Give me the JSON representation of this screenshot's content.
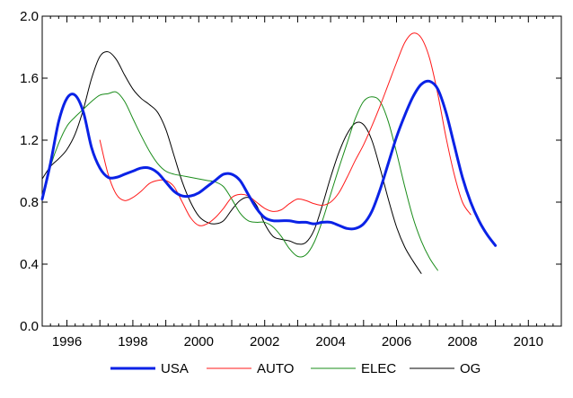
{
  "chart_data": {
    "type": "line",
    "title": "",
    "xlabel": "",
    "ylabel": "",
    "xlim": [
      1995.25,
      2011.0
    ],
    "ylim": [
      0.0,
      2.0
    ],
    "y_ticks": [
      "0.0",
      "0.4",
      "0.8",
      "1.2",
      "1.6",
      "2.0"
    ],
    "x_ticks": [
      "1996",
      "1998",
      "2000",
      "2002",
      "2004",
      "2006",
      "2008",
      "2010"
    ],
    "grid": false,
    "legend_position": "bottom",
    "series": [
      {
        "name": "USA",
        "color": "#0a22e6",
        "points": [
          [
            1995.25,
            0.82
          ],
          [
            1995.5,
            1.05
          ],
          [
            1995.75,
            1.32
          ],
          [
            1996.0,
            1.47
          ],
          [
            1996.25,
            1.49
          ],
          [
            1996.5,
            1.38
          ],
          [
            1996.75,
            1.15
          ],
          [
            1997.0,
            1.02
          ],
          [
            1997.25,
            0.96
          ],
          [
            1997.5,
            0.96
          ],
          [
            1997.75,
            0.98
          ],
          [
            1998.0,
            1.0
          ],
          [
            1998.25,
            1.02
          ],
          [
            1998.5,
            1.02
          ],
          [
            1998.75,
            0.99
          ],
          [
            1999.0,
            0.93
          ],
          [
            1999.25,
            0.87
          ],
          [
            1999.5,
            0.84
          ],
          [
            1999.75,
            0.84
          ],
          [
            2000.0,
            0.86
          ],
          [
            2000.25,
            0.9
          ],
          [
            2000.5,
            0.94
          ],
          [
            2000.75,
            0.98
          ],
          [
            2001.0,
            0.98
          ],
          [
            2001.25,
            0.94
          ],
          [
            2001.5,
            0.85
          ],
          [
            2001.75,
            0.76
          ],
          [
            2002.0,
            0.7
          ],
          [
            2002.25,
            0.68
          ],
          [
            2002.5,
            0.68
          ],
          [
            2002.75,
            0.68
          ],
          [
            2003.0,
            0.67
          ],
          [
            2003.25,
            0.67
          ],
          [
            2003.5,
            0.66
          ],
          [
            2003.75,
            0.67
          ],
          [
            2004.0,
            0.67
          ],
          [
            2004.25,
            0.65
          ],
          [
            2004.5,
            0.63
          ],
          [
            2004.75,
            0.63
          ],
          [
            2005.0,
            0.66
          ],
          [
            2005.25,
            0.74
          ],
          [
            2005.5,
            0.88
          ],
          [
            2005.75,
            1.05
          ],
          [
            2006.0,
            1.22
          ],
          [
            2006.25,
            1.36
          ],
          [
            2006.5,
            1.48
          ],
          [
            2006.75,
            1.56
          ],
          [
            2007.0,
            1.58
          ],
          [
            2007.25,
            1.53
          ],
          [
            2007.5,
            1.38
          ],
          [
            2007.75,
            1.17
          ],
          [
            2008.0,
            0.96
          ],
          [
            2008.25,
            0.8
          ],
          [
            2008.5,
            0.68
          ],
          [
            2008.75,
            0.59
          ],
          [
            2009.0,
            0.52
          ]
        ]
      },
      {
        "name": "AUTO",
        "color": "#ff1a1a",
        "points": [
          [
            1997.0,
            1.2
          ],
          [
            1997.25,
            0.98
          ],
          [
            1997.5,
            0.85
          ],
          [
            1997.75,
            0.81
          ],
          [
            1998.0,
            0.83
          ],
          [
            1998.25,
            0.87
          ],
          [
            1998.5,
            0.92
          ],
          [
            1998.75,
            0.94
          ],
          [
            1999.0,
            0.94
          ],
          [
            1999.25,
            0.9
          ],
          [
            1999.5,
            0.8
          ],
          [
            1999.75,
            0.7
          ],
          [
            2000.0,
            0.65
          ],
          [
            2000.25,
            0.66
          ],
          [
            2000.5,
            0.7
          ],
          [
            2000.75,
            0.76
          ],
          [
            2001.0,
            0.83
          ],
          [
            2001.25,
            0.85
          ],
          [
            2001.5,
            0.84
          ],
          [
            2001.75,
            0.8
          ],
          [
            2002.0,
            0.76
          ],
          [
            2002.25,
            0.74
          ],
          [
            2002.5,
            0.75
          ],
          [
            2002.75,
            0.79
          ],
          [
            2003.0,
            0.82
          ],
          [
            2003.25,
            0.81
          ],
          [
            2003.5,
            0.79
          ],
          [
            2003.75,
            0.78
          ],
          [
            2004.0,
            0.8
          ],
          [
            2004.25,
            0.86
          ],
          [
            2004.5,
            0.96
          ],
          [
            2004.75,
            1.07
          ],
          [
            2005.0,
            1.17
          ],
          [
            2005.25,
            1.29
          ],
          [
            2005.5,
            1.42
          ],
          [
            2005.75,
            1.56
          ],
          [
            2006.0,
            1.7
          ],
          [
            2006.25,
            1.83
          ],
          [
            2006.5,
            1.89
          ],
          [
            2006.75,
            1.86
          ],
          [
            2007.0,
            1.73
          ],
          [
            2007.25,
            1.5
          ],
          [
            2007.5,
            1.22
          ],
          [
            2007.75,
            0.98
          ],
          [
            2008.0,
            0.8
          ],
          [
            2008.25,
            0.72
          ]
        ]
      },
      {
        "name": "ELEC",
        "color": "#1a8c1a",
        "points": [
          [
            1995.25,
            0.83
          ],
          [
            1995.5,
            1.03
          ],
          [
            1995.75,
            1.18
          ],
          [
            1996.0,
            1.29
          ],
          [
            1996.25,
            1.35
          ],
          [
            1996.5,
            1.4
          ],
          [
            1996.75,
            1.45
          ],
          [
            1997.0,
            1.49
          ],
          [
            1997.25,
            1.5
          ],
          [
            1997.5,
            1.51
          ],
          [
            1997.75,
            1.45
          ],
          [
            1998.0,
            1.34
          ],
          [
            1998.25,
            1.23
          ],
          [
            1998.5,
            1.13
          ],
          [
            1998.75,
            1.05
          ],
          [
            1999.0,
            1.0
          ],
          [
            1999.25,
            0.98
          ],
          [
            1999.5,
            0.97
          ],
          [
            1999.75,
            0.96
          ],
          [
            2000.0,
            0.95
          ],
          [
            2000.25,
            0.94
          ],
          [
            2000.5,
            0.93
          ],
          [
            2000.75,
            0.9
          ],
          [
            2001.0,
            0.82
          ],
          [
            2001.25,
            0.73
          ],
          [
            2001.5,
            0.68
          ],
          [
            2001.75,
            0.67
          ],
          [
            2002.0,
            0.67
          ],
          [
            2002.25,
            0.64
          ],
          [
            2002.5,
            0.58
          ],
          [
            2002.75,
            0.5
          ],
          [
            2003.0,
            0.45
          ],
          [
            2003.25,
            0.46
          ],
          [
            2003.5,
            0.54
          ],
          [
            2003.75,
            0.68
          ],
          [
            2004.0,
            0.85
          ],
          [
            2004.25,
            1.02
          ],
          [
            2004.5,
            1.18
          ],
          [
            2004.75,
            1.34
          ],
          [
            2005.0,
            1.45
          ],
          [
            2005.25,
            1.48
          ],
          [
            2005.5,
            1.45
          ],
          [
            2005.75,
            1.32
          ],
          [
            2006.0,
            1.12
          ],
          [
            2006.25,
            0.9
          ],
          [
            2006.5,
            0.7
          ],
          [
            2006.75,
            0.55
          ],
          [
            2007.0,
            0.44
          ],
          [
            2007.25,
            0.36
          ]
        ]
      },
      {
        "name": "OG",
        "color": "#000000",
        "points": [
          [
            1995.25,
            0.95
          ],
          [
            1995.5,
            1.03
          ],
          [
            1995.75,
            1.08
          ],
          [
            1996.0,
            1.14
          ],
          [
            1996.25,
            1.24
          ],
          [
            1996.5,
            1.4
          ],
          [
            1996.75,
            1.6
          ],
          [
            1997.0,
            1.74
          ],
          [
            1997.25,
            1.77
          ],
          [
            1997.5,
            1.72
          ],
          [
            1997.75,
            1.62
          ],
          [
            1998.0,
            1.53
          ],
          [
            1998.25,
            1.47
          ],
          [
            1998.5,
            1.43
          ],
          [
            1998.75,
            1.38
          ],
          [
            1999.0,
            1.27
          ],
          [
            1999.25,
            1.1
          ],
          [
            1999.5,
            0.93
          ],
          [
            1999.75,
            0.8
          ],
          [
            2000.0,
            0.71
          ],
          [
            2000.25,
            0.67
          ],
          [
            2000.5,
            0.66
          ],
          [
            2000.75,
            0.68
          ],
          [
            2001.0,
            0.75
          ],
          [
            2001.25,
            0.81
          ],
          [
            2001.5,
            0.83
          ],
          [
            2001.75,
            0.78
          ],
          [
            2002.0,
            0.66
          ],
          [
            2002.25,
            0.58
          ],
          [
            2002.5,
            0.56
          ],
          [
            2002.75,
            0.55
          ],
          [
            2003.0,
            0.53
          ],
          [
            2003.25,
            0.54
          ],
          [
            2003.5,
            0.62
          ],
          [
            2003.75,
            0.78
          ],
          [
            2004.0,
            0.96
          ],
          [
            2004.25,
            1.12
          ],
          [
            2004.5,
            1.24
          ],
          [
            2004.75,
            1.31
          ],
          [
            2005.0,
            1.3
          ],
          [
            2005.25,
            1.2
          ],
          [
            2005.5,
            1.02
          ],
          [
            2005.75,
            0.82
          ],
          [
            2006.0,
            0.64
          ],
          [
            2006.25,
            0.51
          ],
          [
            2006.5,
            0.42
          ],
          [
            2006.75,
            0.34
          ]
        ]
      }
    ]
  }
}
